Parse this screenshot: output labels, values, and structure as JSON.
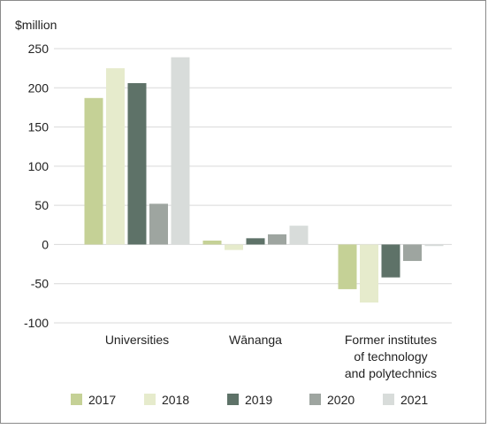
{
  "chart_data": {
    "type": "bar",
    "ylabel": "$million",
    "ylim": [
      -100,
      250
    ],
    "yticks": [
      250,
      200,
      150,
      100,
      50,
      0,
      -50,
      -100
    ],
    "grid": true,
    "legend_position": "bottom",
    "categories": [
      [
        "Universities"
      ],
      [
        "Wānanga"
      ],
      [
        "Former institutes",
        "of technology",
        "and polytechnics"
      ]
    ],
    "series": [
      {
        "name": "2017",
        "color": "#c5d196",
        "values": [
          187,
          5,
          -57
        ]
      },
      {
        "name": "2018",
        "color": "#e6ebcc",
        "values": [
          225,
          -7,
          -74
        ]
      },
      {
        "name": "2019",
        "color": "#5e7268",
        "values": [
          206,
          8,
          -42
        ]
      },
      {
        "name": "2020",
        "color": "#9ea5a0",
        "values": [
          52,
          13,
          -21
        ]
      },
      {
        "name": "2021",
        "color": "#d8dcda",
        "values": [
          239,
          24,
          -2
        ]
      }
    ]
  }
}
